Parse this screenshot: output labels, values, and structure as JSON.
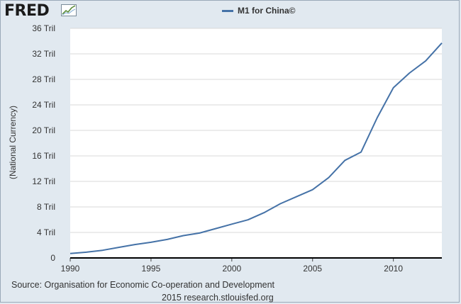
{
  "brand": {
    "name": "FRED",
    "icon": "line-chart-icon"
  },
  "chart_data": {
    "type": "line",
    "title": "M1 for China©",
    "series": [
      {
        "name": "M1 for China©",
        "color": "#4572a7",
        "x": [
          1990,
          1991,
          1992,
          1993,
          1994,
          1995,
          1996,
          1997,
          1998,
          1999,
          2000,
          2001,
          2002,
          2003,
          2004,
          2005,
          2006,
          2007,
          2008,
          2009,
          2010,
          2011,
          2012,
          2013
        ],
        "values": [
          0.7,
          0.9,
          1.2,
          1.65,
          2.1,
          2.45,
          2.9,
          3.5,
          3.9,
          4.6,
          5.3,
          5.98,
          7.1,
          8.5,
          9.6,
          10.7,
          12.6,
          15.3,
          16.6,
          22.0,
          26.7,
          29.0,
          30.9,
          33.7
        ]
      }
    ],
    "xlabel": "",
    "ylabel": "(National Currency)",
    "x_ticks": [
      1990,
      1995,
      2000,
      2005,
      2010
    ],
    "x_tick_labels": [
      "1990",
      "1995",
      "2000",
      "2005",
      "2010"
    ],
    "y_ticks": [
      0,
      4,
      8,
      12,
      16,
      20,
      24,
      28,
      32,
      36
    ],
    "y_tick_labels": [
      "0",
      "4 Tril",
      "8 Tril",
      "12 Tril",
      "16 Tril",
      "20 Tril",
      "24 Tril",
      "28 Tril",
      "32 Tril",
      "36 Tril"
    ],
    "xlim": [
      1990,
      2013
    ],
    "ylim": [
      0,
      36
    ],
    "grid": true,
    "legend": "top-center"
  },
  "footer": {
    "source": "Source: Organisation for Economic Co-operation and Development",
    "credit": "2015 research.stlouisfed.org"
  }
}
